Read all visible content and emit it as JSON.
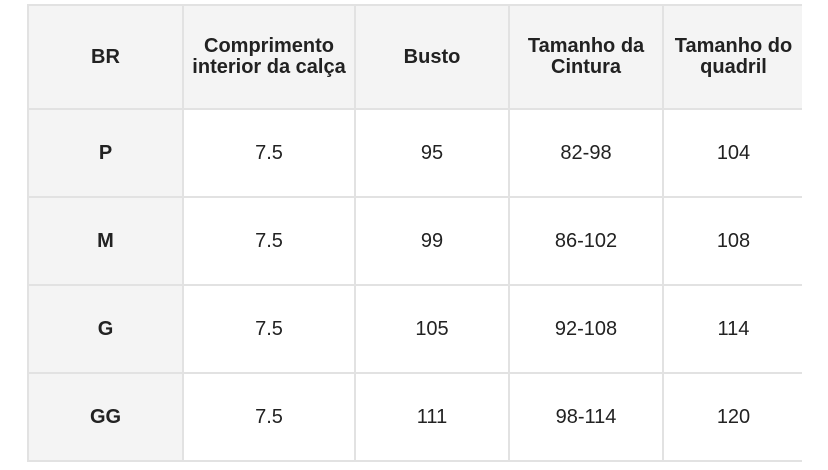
{
  "table": {
    "headers": [
      "BR",
      "Comprimento interior da calça",
      "Busto",
      "Tamanho da Cintura",
      "Tamanho do quadril"
    ],
    "rows": [
      [
        "P",
        "7.5",
        "95",
        "82-98",
        "104"
      ],
      [
        "M",
        "7.5",
        "99",
        "86-102",
        "108"
      ],
      [
        "G",
        "7.5",
        "105",
        "92-108",
        "114"
      ],
      [
        "GG",
        "7.5",
        "111",
        "98-114",
        "120"
      ]
    ]
  },
  "colors": {
    "header_bg": "#f4f4f4",
    "border": "#e2e2e2",
    "text": "#222222"
  }
}
